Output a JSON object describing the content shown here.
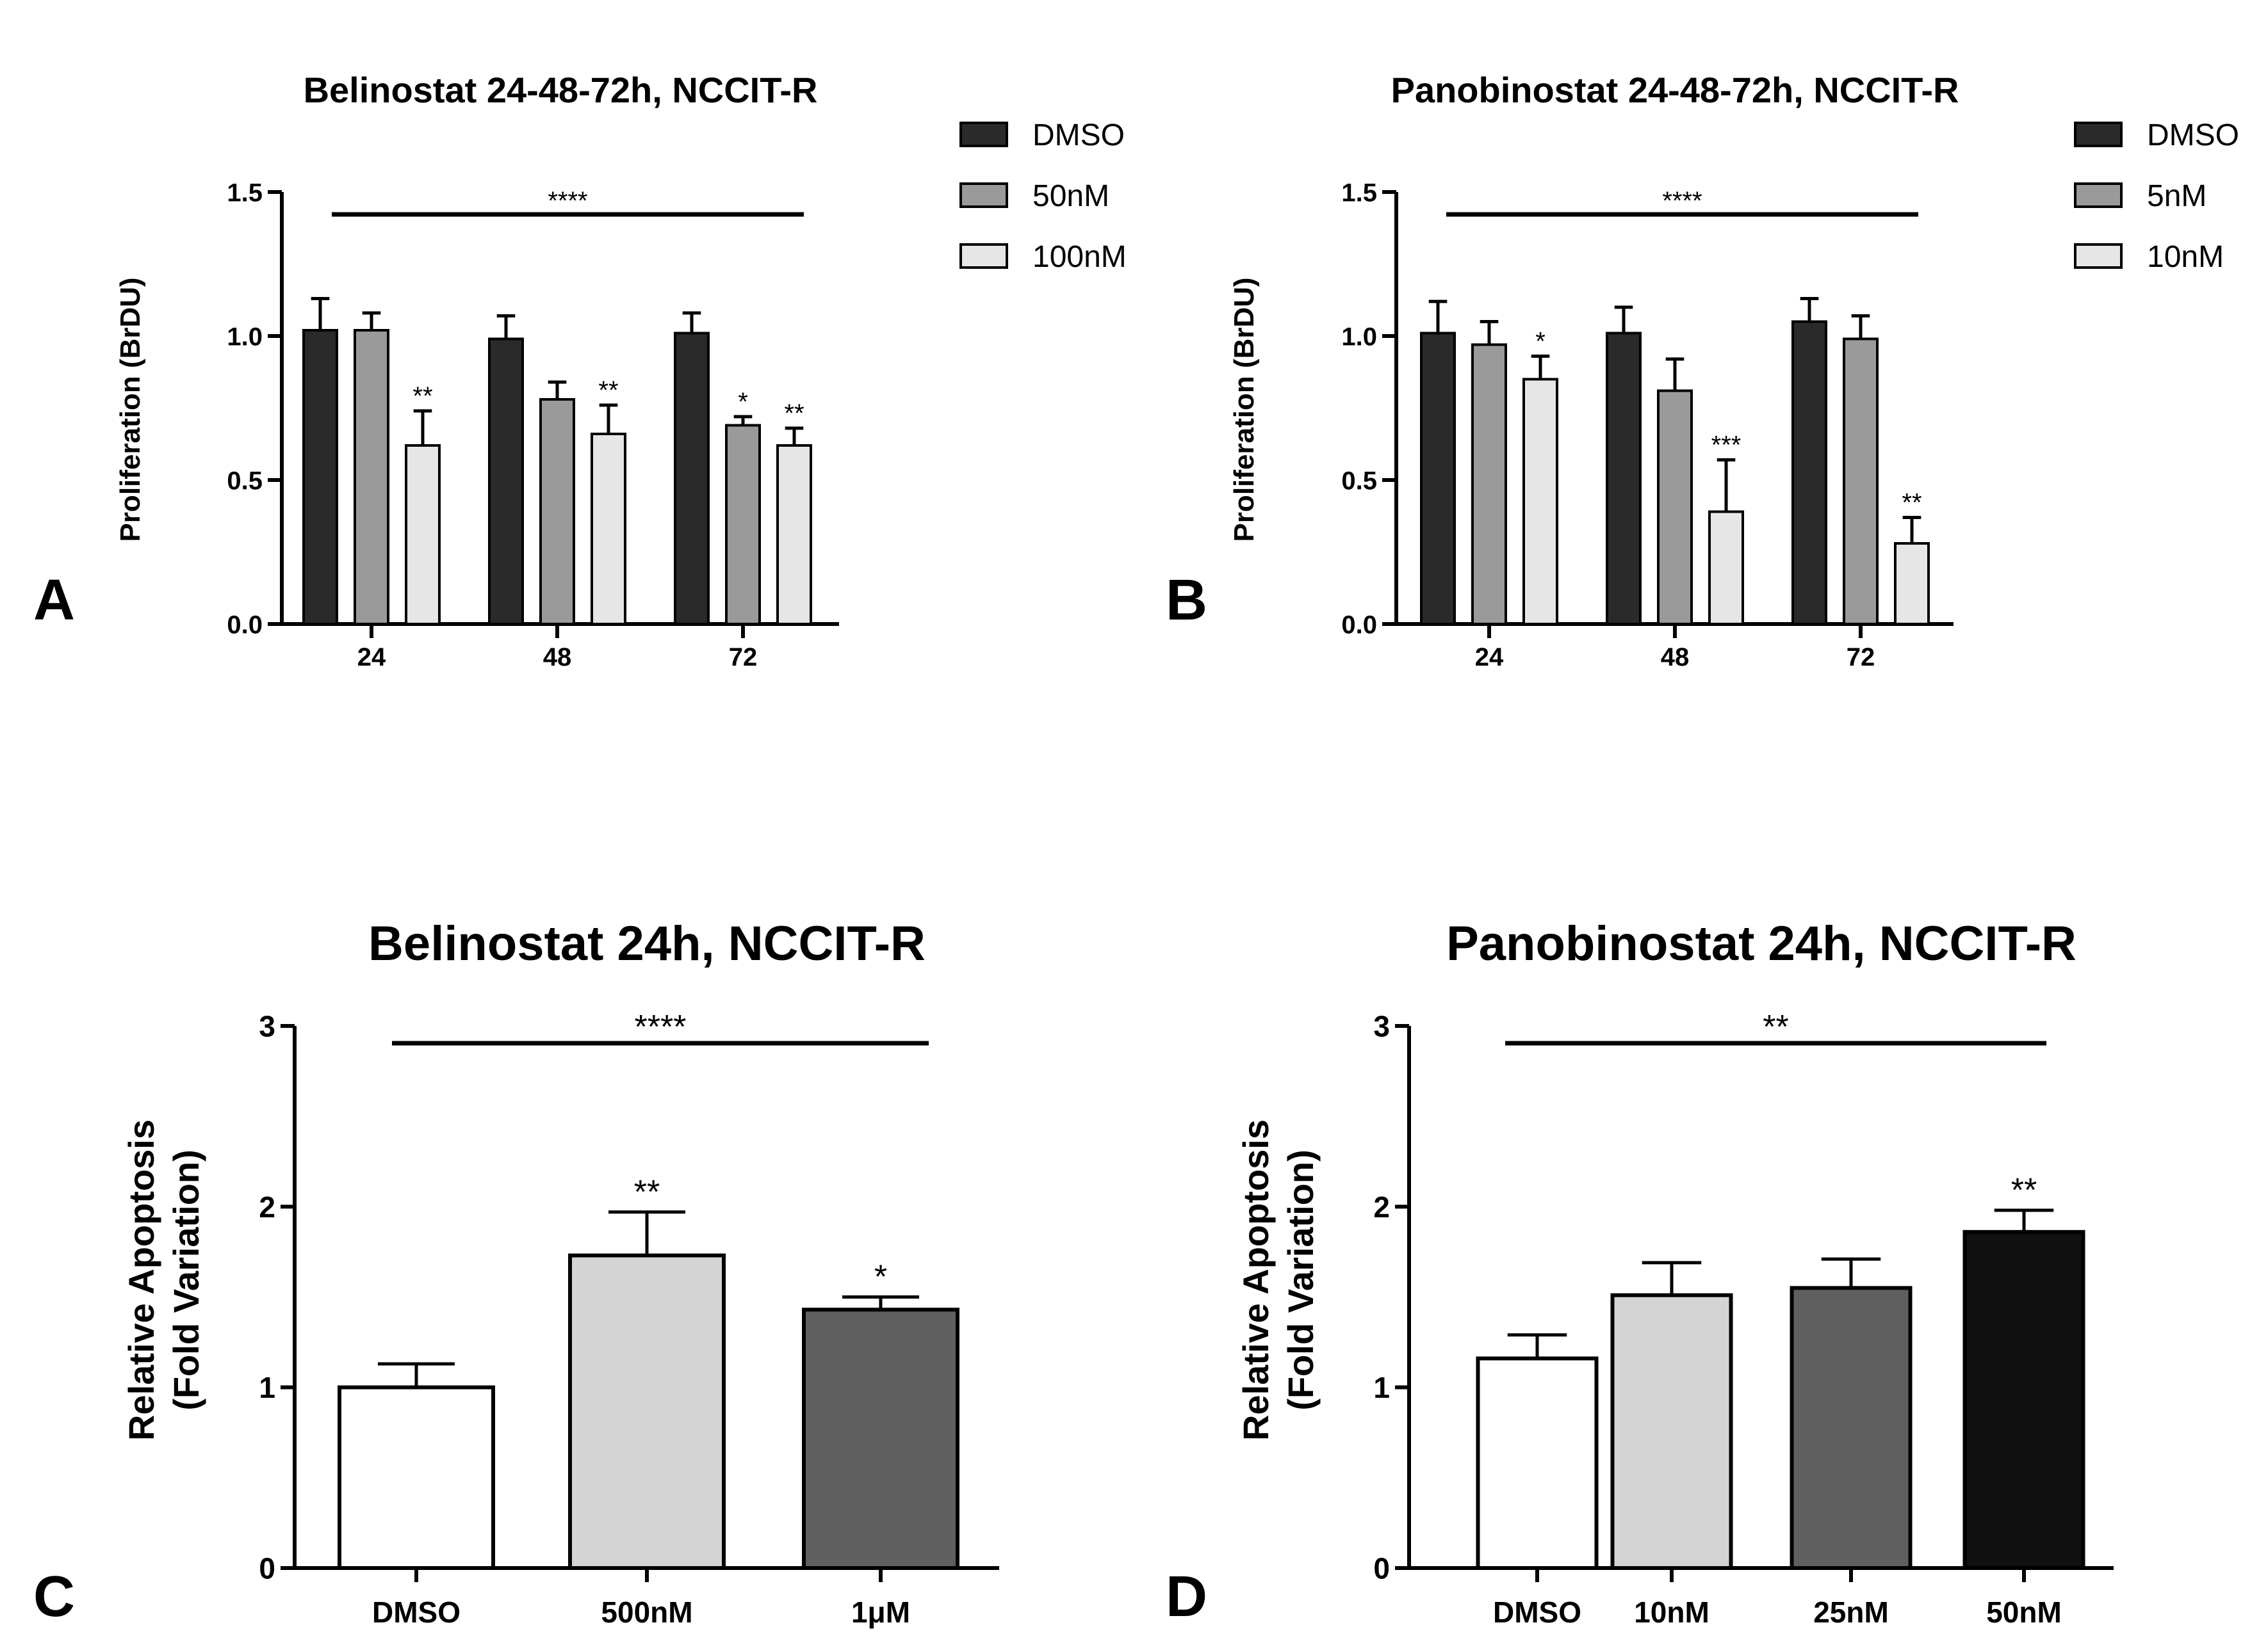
{
  "chart_data": [
    {
      "panel": "A",
      "type": "bar",
      "title": "Belinostat 24-48-72h, NCCIT-R",
      "ylabel": "Proliferation (BrDU)",
      "xlabel": "",
      "ylim": [
        0,
        1.5
      ],
      "yticks": [
        "0.0",
        "0.5",
        "1.0",
        "1.5"
      ],
      "categories": [
        "24",
        "48",
        "72"
      ],
      "series": [
        {
          "name": "DMSO",
          "color": "#2a2a2a",
          "values": [
            1.02,
            0.99,
            1.01
          ],
          "errors": [
            0.11,
            0.08,
            0.07
          ],
          "sig": [
            "",
            "",
            ""
          ]
        },
        {
          "name": "50nM",
          "color": "#9a9a9a",
          "values": [
            1.02,
            0.78,
            0.69
          ],
          "errors": [
            0.06,
            0.06,
            0.03
          ],
          "sig": [
            "",
            "",
            "*"
          ]
        },
        {
          "name": "100nM",
          "color": "#e6e6e6",
          "values": [
            0.62,
            0.66,
            0.62
          ],
          "errors": [
            0.12,
            0.1,
            0.06
          ],
          "sig": [
            "**",
            "**",
            "**"
          ]
        }
      ],
      "overall_sig": "****",
      "legend_position": "right"
    },
    {
      "panel": "B",
      "type": "bar",
      "title": "Panobinostat 24-48-72h, NCCIT-R",
      "ylabel": "Proliferation (BrDU)",
      "xlabel": "",
      "ylim": [
        0,
        1.5
      ],
      "yticks": [
        "0.0",
        "0.5",
        "1.0",
        "1.5"
      ],
      "categories": [
        "24",
        "48",
        "72"
      ],
      "series": [
        {
          "name": "DMSO",
          "color": "#2a2a2a",
          "values": [
            1.01,
            1.01,
            1.05
          ],
          "errors": [
            0.11,
            0.09,
            0.08
          ],
          "sig": [
            "",
            "",
            ""
          ]
        },
        {
          "name": "5nM",
          "color": "#9a9a9a",
          "values": [
            0.97,
            0.81,
            0.99
          ],
          "errors": [
            0.08,
            0.11,
            0.08
          ],
          "sig": [
            "",
            "",
            ""
          ]
        },
        {
          "name": "10nM",
          "color": "#e6e6e6",
          "values": [
            0.85,
            0.39,
            0.28
          ],
          "errors": [
            0.08,
            0.18,
            0.09
          ],
          "sig": [
            "*",
            "***",
            "**"
          ]
        }
      ],
      "overall_sig": "****",
      "legend_position": "right"
    },
    {
      "panel": "C",
      "type": "bar",
      "title": "Belinostat 24h, NCCIT-R",
      "ylabel_line1": "Relative Apoptosis",
      "ylabel_line2": "(Fold Variation)",
      "xlabel": "",
      "ylim": [
        0,
        3
      ],
      "yticks": [
        "0",
        "1",
        "2",
        "3"
      ],
      "categories": [
        "DMSO",
        "500nM",
        "1μM"
      ],
      "values": [
        1.0,
        1.73,
        1.43
      ],
      "errors": [
        0.13,
        0.24,
        0.07
      ],
      "colors": [
        "#ffffff",
        "#d4d4d4",
        "#5f5f5f"
      ],
      "sig": [
        "",
        "**",
        "*"
      ],
      "overall_sig": "****"
    },
    {
      "panel": "D",
      "type": "bar",
      "title": "Panobinostat 24h, NCCIT-R",
      "ylabel_line1": "Relative Apoptosis",
      "ylabel_line2": "(Fold Variation)",
      "xlabel": "",
      "ylim": [
        0,
        3
      ],
      "yticks": [
        "0",
        "1",
        "2",
        "3"
      ],
      "categories": [
        "DMSO",
        "10nM",
        "25nM",
        "50nM"
      ],
      "values": [
        1.16,
        1.51,
        1.55,
        1.86
      ],
      "errors": [
        0.13,
        0.18,
        0.16,
        0.12
      ],
      "colors": [
        "#ffffff",
        "#d4d4d4",
        "#5f5f5f",
        "#111111"
      ],
      "sig": [
        "",
        "",
        "",
        "**"
      ],
      "overall_sig": "**"
    }
  ]
}
